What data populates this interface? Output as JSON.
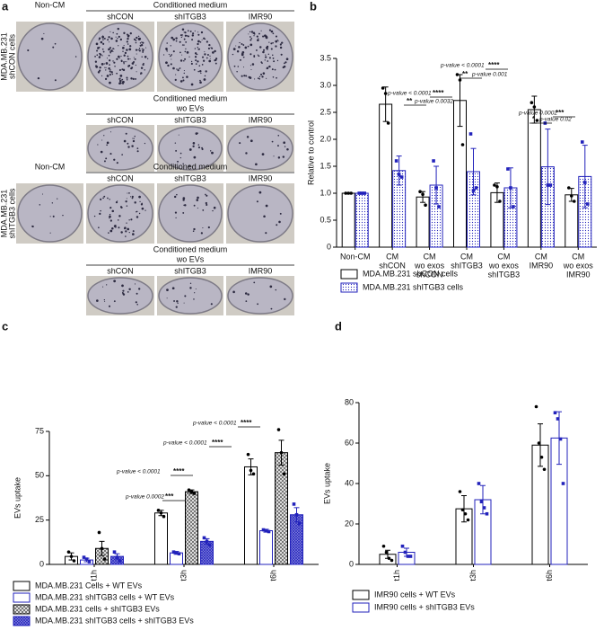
{
  "panel_a": {
    "label": "a",
    "blocks": [
      {
        "row_label": [
          "MDA.MB.231",
          "shCON cells"
        ],
        "first": "Non-CM",
        "header": [
          "Conditioned medium"
        ],
        "columns": [
          "shCON",
          "shITGB3",
          "IMR90"
        ]
      },
      {
        "header": [
          "Conditioned medium",
          "wo EVs"
        ],
        "columns": [
          "shCON",
          "shITGB3",
          "IMR90"
        ]
      },
      {
        "row_label": [
          "MDA.MB.231",
          "shITGB3 cells"
        ],
        "first": "Non-CM",
        "header": [
          "Conditioned medium"
        ],
        "columns": [
          "shCON",
          "shITGB3",
          "IMR90"
        ]
      },
      {
        "header": [
          "Conditioned medium",
          "wo EVs"
        ],
        "columns": [
          "shCON",
          "shITGB3",
          "IMR90"
        ]
      }
    ]
  },
  "chart_data": [
    {
      "type": "bar",
      "panel": "b",
      "ylabel": "Relative to control",
      "categories": [
        [
          "Non-CM"
        ],
        [
          "CM",
          "shCON"
        ],
        [
          "CM",
          "wo exos",
          "shCON"
        ],
        [
          "CM",
          "shITGB3"
        ],
        [
          "CM",
          "wo exos",
          "shITGB3"
        ],
        [
          "CM",
          "IMR90"
        ],
        [
          "CM",
          "wo exos",
          "IMR90"
        ]
      ],
      "ylim": [
        0,
        3.5
      ],
      "yticks": [
        0,
        0.5,
        {
          "value": 1,
          "label": "1.0"
        },
        1.5,
        {
          "value": 2,
          "label": "2.0"
        },
        2.5,
        {
          "value": 3,
          "label": "3.0"
        },
        3.5
      ],
      "series": [
        {
          "name": "MDA.MB.231 shCON cells",
          "color": "#000000",
          "pattern": "none",
          "marker": "circle",
          "values": [
            1.0,
            2.65,
            0.93,
            2.72,
            1.01,
            2.55,
            0.97
          ],
          "errors": [
            0.01,
            0.32,
            0.1,
            0.48,
            0.18,
            0.25,
            0.12
          ],
          "points": [
            [
              1.0,
              1.0,
              1.0
            ],
            [
              2.95,
              2.85,
              2.3
            ],
            [
              1.03,
              0.98,
              0.78
            ],
            [
              3.2,
              3.1,
              1.9
            ],
            [
              1.15,
              1.12,
              0.85
            ],
            [
              2.68,
              2.6,
              2.35
            ],
            [
              1.1,
              0.95,
              0.85
            ]
          ]
        },
        {
          "name": "MDA.MB.231 shITGB3 cells",
          "color": "#2222bb",
          "pattern": "dots",
          "marker": "square",
          "values": [
            1.0,
            1.42,
            1.15,
            1.4,
            1.1,
            1.49,
            1.31
          ],
          "errors": [
            0.01,
            0.27,
            0.35,
            0.43,
            0.37,
            0.7,
            0.58
          ],
          "points": [
            [
              1.0,
              1.0,
              1.0
            ],
            [
              1.6,
              1.35,
              1.3
            ],
            [
              1.6,
              1.1,
              0.75
            ],
            [
              2.1,
              1.05,
              1.1
            ],
            [
              1.45,
              1.1,
              0.75
            ],
            [
              2.3,
              1.15,
              1.15
            ],
            [
              1.95,
              1.2,
              0.8
            ]
          ]
        }
      ],
      "annotations": [
        "p-value < 0.0001",
        "****",
        "**",
        "p-value 0.0032",
        "p-value < 0.0001",
        "****",
        "**",
        "p-value 0.001",
        "p-value 0.0002",
        "***",
        "*",
        "p-value 0.02"
      ]
    },
    {
      "type": "bar",
      "panel": "c",
      "ylabel": "EVs uptake",
      "categories": [
        [
          "t1h"
        ],
        [
          "t3h"
        ],
        [
          "t6h"
        ]
      ],
      "ylim": [
        0,
        75
      ],
      "yticks": [
        0,
        25,
        50,
        75
      ],
      "series": [
        {
          "name": "MDA.MB.231 Cells + WT EVs",
          "color": "#000000",
          "pattern": "none",
          "marker": "circle",
          "values": [
            4.5,
            29,
            55
          ],
          "errors": [
            2,
            1.5,
            4.5
          ],
          "points": [
            [
              7,
              4.5,
              2
            ],
            [
              30.5,
              29,
              27
            ],
            [
              62,
              53,
              51
            ]
          ]
        },
        {
          "name": "MDA.MB.231 shITGB3 cells + WT EVs",
          "color": "#2222bb",
          "pattern": "none",
          "marker": "square",
          "values": [
            2.5,
            6.5,
            19
          ],
          "errors": [
            1,
            0.8,
            0.8
          ],
          "points": [
            [
              4,
              3,
              1.5
            ],
            [
              7,
              6.5,
              6
            ],
            [
              19.5,
              19,
              18.5
            ]
          ]
        },
        {
          "name": "MDA.MB.231 cells + shITGB3 EVs",
          "color": "#000000",
          "pattern": "checker",
          "marker": "circle",
          "values": [
            9,
            41,
            63
          ],
          "errors": [
            4,
            1,
            7
          ],
          "points": [
            [
              18,
              9,
              3
            ],
            [
              42,
              41,
              40
            ],
            [
              76,
              63,
              51
            ]
          ]
        },
        {
          "name": "MDA.MB.231 shITGB3 cells + shITGB3 EVs",
          "color": "#2222bb",
          "pattern": "cross",
          "marker": "square",
          "values": [
            4.5,
            13,
            28
          ],
          "errors": [
            1.5,
            1.5,
            4
          ],
          "points": [
            [
              7,
              4,
              2
            ],
            [
              15,
              13,
              11
            ],
            [
              34,
              28,
              23
            ]
          ]
        }
      ],
      "annotations": [
        "p-value 0.0002",
        "***",
        "p-value < 0.0001",
        "****",
        "p-value < 0.0001",
        "****",
        "p-value < 0.0001",
        "****"
      ]
    },
    {
      "type": "bar",
      "panel": "d",
      "ylabel": "EVs uptake",
      "categories": [
        [
          "t1h"
        ],
        [
          "t3h"
        ],
        [
          "t6h"
        ]
      ],
      "ylim": [
        0,
        80
      ],
      "yticks": [
        0,
        20,
        40,
        60,
        80
      ],
      "series": [
        {
          "name": "IMR90 cells + WT EVs",
          "color": "#000000",
          "pattern": "none",
          "marker": "circle",
          "values": [
            5,
            27.5,
            59
          ],
          "errors": [
            2,
            6.5,
            10.5
          ],
          "points": [
            [
              9,
              6,
              3,
              2
            ],
            [
              36,
              27,
              25,
              22
            ],
            [
              78,
              60,
              53,
              47
            ]
          ]
        },
        {
          "name": "IMR90 cells + shITGB3 EVs",
          "color": "#2222bb",
          "pattern": "none",
          "marker": "square",
          "values": [
            6,
            32,
            62.5
          ],
          "errors": [
            2,
            7,
            13
          ],
          "points": [
            [
              9,
              6,
              4,
              4
            ],
            [
              40,
              31,
              28,
              25
            ],
            [
              75,
              72,
              62,
              40
            ]
          ]
        }
      ],
      "annotations": []
    }
  ]
}
